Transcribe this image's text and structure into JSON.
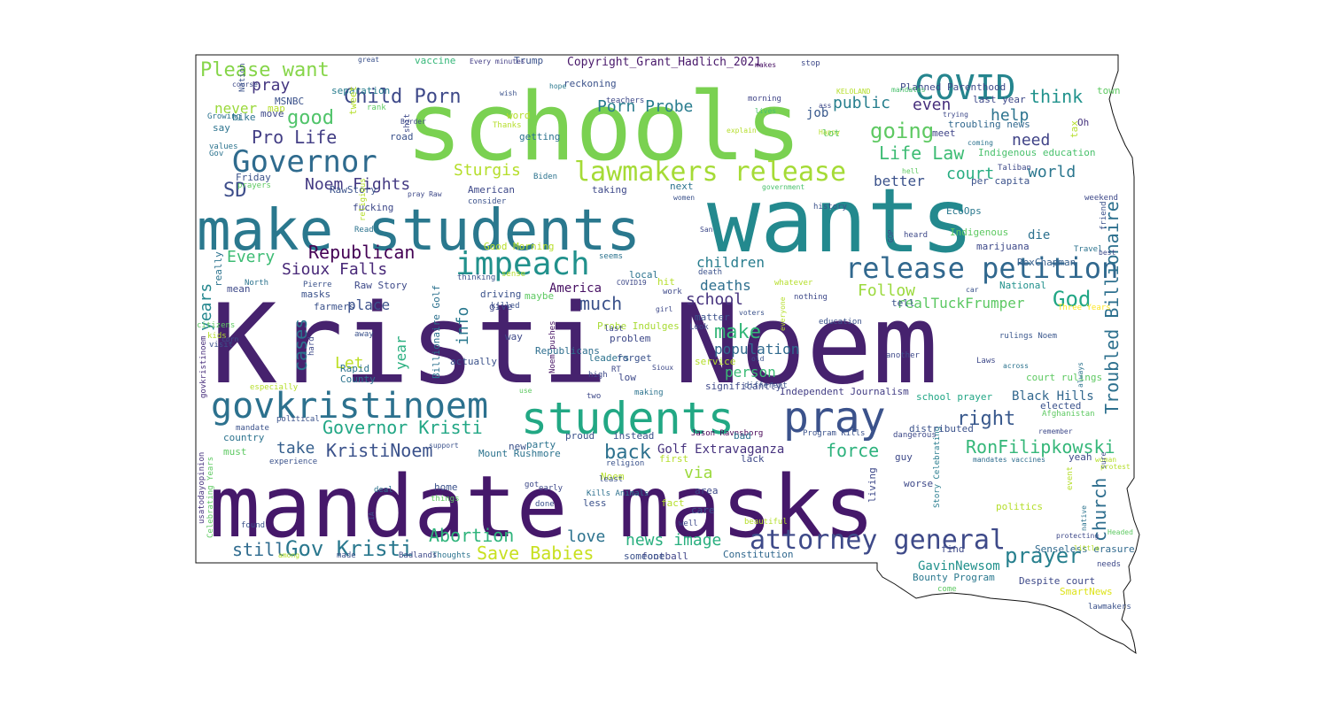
{
  "words": [
    {
      "text": "Kristi Noem",
      "color": "#46226e"
    },
    {
      "text": "mandate masks",
      "color": "#45186a"
    },
    {
      "text": "wants",
      "color": "#23898e"
    },
    {
      "text": "schools",
      "color": "#7ad151"
    },
    {
      "text": "make students",
      "color": "#2a788e"
    },
    {
      "text": "students",
      "color": "#22a884"
    },
    {
      "text": "pray",
      "color": "#3b528b"
    },
    {
      "text": "govkristinoem",
      "color": "#2c718e"
    },
    {
      "text": "Governor",
      "color": "#2f6b8e"
    },
    {
      "text": "COVID",
      "color": "#25858e"
    },
    {
      "text": "attorney general",
      "color": "#3e4a89"
    },
    {
      "text": "impeach",
      "color": "#21918c"
    },
    {
      "text": "release petition",
      "color": "#31688e"
    },
    {
      "text": "lawmakers release",
      "color": "#a5db36"
    },
    {
      "text": "Child Porn",
      "color": "#3e4989"
    },
    {
      "text": "Please want",
      "color": "#86d549"
    },
    {
      "text": "Copyright_Grant_Hadlich_2021",
      "color": "#48186a"
    },
    {
      "text": "Troubled Billionaire",
      "color": "#2d708e"
    },
    {
      "text": "RonFilipkowski",
      "color": "#35b779"
    },
    {
      "text": "Governor Kristi",
      "color": "#22a785"
    },
    {
      "text": "Gov Kristi",
      "color": "#2a788e"
    },
    {
      "text": "KristiNoem",
      "color": "#3b528b"
    },
    {
      "text": "prayer",
      "color": "#27808e"
    },
    {
      "text": "church",
      "color": "#2e6e8e"
    },
    {
      "text": "Abortion",
      "color": "#2fb47c"
    },
    {
      "text": "Save Babies",
      "color": "#c8e020"
    },
    {
      "text": "news image",
      "color": "#29af7f"
    },
    {
      "text": "Republican",
      "color": "#440154"
    },
    {
      "text": "Noem Fights",
      "color": "#443a83"
    },
    {
      "text": "Sioux Falls",
      "color": "#482878"
    },
    {
      "text": "Pro Life",
      "color": "#433e85"
    },
    {
      "text": "Life Law",
      "color": "#3dbc74"
    },
    {
      "text": "Sturgis",
      "color": "#b5de2b"
    },
    {
      "text": "Porn Probe",
      "color": "#287c8e"
    },
    {
      "text": "public",
      "color": "#277f8e"
    },
    {
      "text": "think",
      "color": "#20928c"
    },
    {
      "text": "going",
      "color": "#5ec962"
    },
    {
      "text": "help",
      "color": "#2c738e"
    },
    {
      "text": "even",
      "color": "#472f7d"
    },
    {
      "text": "need",
      "color": "#404387"
    },
    {
      "text": "court",
      "color": "#27ad81"
    },
    {
      "text": "world",
      "color": "#2a768e"
    },
    {
      "text": "God",
      "color": "#21a685"
    },
    {
      "text": "right",
      "color": "#38588c"
    },
    {
      "text": "force",
      "color": "#2db27d"
    },
    {
      "text": "back",
      "color": "#2d718e"
    },
    {
      "text": "via",
      "color": "#9bd93c"
    },
    {
      "text": "Golf Extravaganza",
      "color": "#46327e"
    },
    {
      "text": "good",
      "color": "#50c46a"
    },
    {
      "text": "SD",
      "color": "#3d4d8a"
    },
    {
      "text": "Every",
      "color": "#3dbc74"
    },
    {
      "text": "take",
      "color": "#355f8d"
    },
    {
      "text": "cases",
      "color": "#2b748e"
    },
    {
      "text": "years",
      "color": "#24878e"
    },
    {
      "text": "info",
      "color": "#2a788e"
    },
    {
      "text": "much",
      "color": "#3b528b"
    },
    {
      "text": "make",
      "color": "#35b779"
    },
    {
      "text": "school",
      "color": "#46337e"
    },
    {
      "text": "deaths",
      "color": "#2e6f8e"
    },
    {
      "text": "children",
      "color": "#287d8e"
    },
    {
      "text": "Follow",
      "color": "#9bd93c"
    },
    {
      "text": "realTuckFrumper",
      "color": "#5cc863"
    },
    {
      "text": "person",
      "color": "#3bbb75"
    },
    {
      "text": "population",
      "color": "#306a8e"
    },
    {
      "text": "place",
      "color": "#3b518b"
    },
    {
      "text": "Let",
      "color": "#bddf26"
    },
    {
      "text": "still",
      "color": "#2f6b8e"
    },
    {
      "text": "love",
      "color": "#2c728e"
    },
    {
      "text": "pray",
      "color": "#453781"
    },
    {
      "text": "job",
      "color": "#38588c"
    },
    {
      "text": "better",
      "color": "#3b528b"
    },
    {
      "text": "die",
      "color": "#2d718e"
    },
    {
      "text": "never",
      "color": "#9bd93c"
    },
    {
      "text": "America",
      "color": "#471063"
    },
    {
      "text": "year",
      "color": "#29af7f"
    },
    {
      "text": "GavinNewsom",
      "color": "#21918c"
    },
    {
      "text": "Black Hills",
      "color": "#31678e"
    },
    {
      "text": "school prayer",
      "color": "#21a685"
    },
    {
      "text": "court rulings",
      "color": "#5ec962"
    },
    {
      "text": "marijuana",
      "color": "#3e4989"
    },
    {
      "text": "RexChapman",
      "color": "#355f8d"
    },
    {
      "text": "Indigenous education",
      "color": "#4ac16d"
    },
    {
      "text": "Planned Parenthood",
      "color": "#3e4a89"
    },
    {
      "text": "Bounty Program",
      "color": "#2a788e"
    },
    {
      "text": "Despite court",
      "color": "#3e4989"
    },
    {
      "text": "Independent Journalism",
      "color": "#433e85"
    },
    {
      "text": "Billionaire Golf",
      "color": "#2c718e"
    },
    {
      "text": "Probe Indulges",
      "color": "#a8db34"
    },
    {
      "text": "Good Morning",
      "color": "#b8de29"
    },
    {
      "text": "Raw Story",
      "color": "#3e4a89"
    },
    {
      "text": "RawStory",
      "color": "#3b528b"
    },
    {
      "text": "Mount Rushmore",
      "color": "#2c738e"
    },
    {
      "text": "Senseless erasure",
      "color": "#306a8e"
    },
    {
      "text": "Constitution",
      "color": "#31688e"
    },
    {
      "text": "football",
      "color": "#404588"
    },
    {
      "text": "SmartNews",
      "color": "#dde318"
    },
    {
      "text": "Jason Ravnsborg",
      "color": "#440154"
    },
    {
      "text": "Program Kills",
      "color": "#3b528b"
    },
    {
      "text": "Kills Animals",
      "color": "#2d708e"
    },
    {
      "text": "Noem pushes",
      "color": "#471365"
    },
    {
      "text": "rulings Noem",
      "color": "#39568c"
    },
    {
      "text": "Story Celebrating",
      "color": "#287c8e"
    },
    {
      "text": "mandates vaccines",
      "color": "#2f6c8e"
    },
    {
      "text": "Celebrating Years",
      "color": "#5ec962"
    },
    {
      "text": "usatodayopinion",
      "color": "#46327e"
    },
    {
      "text": "govkristinoem",
      "color": "#472d7b"
    },
    {
      "text": "Three Years",
      "color": "#fde725"
    },
    {
      "text": "Taliban",
      "color": "#3e4989"
    },
    {
      "text": "EcoOps",
      "color": "#2a788e"
    },
    {
      "text": "Indigenous",
      "color": "#5ec962"
    },
    {
      "text": "National",
      "color": "#21918c"
    },
    {
      "text": "per capita",
      "color": "#3b528b"
    },
    {
      "text": "Republicans",
      "color": "#2e6e8e"
    },
    {
      "text": "separation",
      "color": "#287d8e"
    },
    {
      "text": "reckoning",
      "color": "#3b528b"
    },
    {
      "text": "vaccine",
      "color": "#35b779"
    },
    {
      "text": "Trump",
      "color": "#3b528b"
    },
    {
      "text": "great",
      "color": "#3b528b"
    },
    {
      "text": "Every minutes",
      "color": "#433e85"
    },
    {
      "text": "stop",
      "color": "#3e4989"
    },
    {
      "text": "makes",
      "color": "#471063"
    },
    {
      "text": "KELOLAND",
      "color": "#b5de2b"
    },
    {
      "text": "mandates",
      "color": "#4ac16d"
    },
    {
      "text": "town",
      "color": "#5ec962"
    },
    {
      "text": "tax",
      "color": "#b5de2b"
    },
    {
      "text": "trying",
      "color": "#3e4989"
    },
    {
      "text": "troubling news",
      "color": "#31688e"
    },
    {
      "text": "meet",
      "color": "#404588"
    },
    {
      "text": "last year",
      "color": "#3e4989"
    },
    {
      "text": "Oh",
      "color": "#46327e"
    },
    {
      "text": "hell",
      "color": "#5ec962"
    },
    {
      "text": "coming",
      "color": "#2c738e"
    },
    {
      "text": "ass",
      "color": "#3e4989"
    },
    {
      "text": "Happy",
      "color": "#b5de2b"
    },
    {
      "text": "lot",
      "color": "#5ec962"
    },
    {
      "text": "lives",
      "color": "#4ac16d"
    },
    {
      "text": "explain",
      "color": "#b5de2b"
    },
    {
      "text": "morning",
      "color": "#404588"
    },
    {
      "text": "teachers",
      "color": "#3e4989"
    },
    {
      "text": "wish",
      "color": "#3b528b"
    },
    {
      "text": "hope",
      "color": "#2a788e"
    },
    {
      "text": "word",
      "color": "#b5de2b"
    },
    {
      "text": "Thanks",
      "color": "#b5de2b"
    },
    {
      "text": "getting",
      "color": "#2c738e"
    },
    {
      "text": "road",
      "color": "#3b528b"
    },
    {
      "text": "shit",
      "color": "#3e4989"
    },
    {
      "text": "Border",
      "color": "#3e4989"
    },
    {
      "text": "tweet",
      "color": "#b5de2b"
    },
    {
      "text": "rank",
      "color": "#5ec962"
    },
    {
      "text": "MSNBC",
      "color": "#3b528b"
    },
    {
      "text": "map",
      "color": "#b5de2b"
    },
    {
      "text": "move",
      "color": "#3e4989"
    },
    {
      "text": "bike",
      "color": "#2c738e"
    },
    {
      "text": "course",
      "color": "#3e4989"
    },
    {
      "text": "Nation",
      "color": "#3b528b"
    },
    {
      "text": "Growing",
      "color": "#2c738e"
    },
    {
      "text": "say",
      "color": "#2c738e"
    },
    {
      "text": "values",
      "color": "#2c738e"
    },
    {
      "text": "Gov",
      "color": "#2c738e"
    },
    {
      "text": "Friday",
      "color": "#3b528b"
    },
    {
      "text": "prayers",
      "color": "#5ec962"
    },
    {
      "text": "pray Raw",
      "color": "#3e4989"
    },
    {
      "text": "American",
      "color": "#3e4989"
    },
    {
      "text": "fucking",
      "color": "#3e4989"
    },
    {
      "text": "religious",
      "color": "#b5de2b"
    },
    {
      "text": "Read",
      "color": "#2c738e"
    },
    {
      "text": "Biden",
      "color": "#2c738e"
    },
    {
      "text": "consider",
      "color": "#3b528b"
    },
    {
      "text": "taking",
      "color": "#3e4989"
    },
    {
      "text": "next",
      "color": "#2c738e"
    },
    {
      "text": "women",
      "color": "#3b528b"
    },
    {
      "text": "government",
      "color": "#4ac16d"
    },
    {
      "text": "history",
      "color": "#3b528b"
    },
    {
      "text": "friend",
      "color": "#3b528b"
    },
    {
      "text": "weekend",
      "color": "#3e4989"
    },
    {
      "text": "Travel",
      "color": "#2c738e"
    },
    {
      "text": "best",
      "color": "#3e4989"
    },
    {
      "text": "heard",
      "color": "#3e4989"
    },
    {
      "text": "GOP",
      "color": "#3e4989"
    },
    {
      "text": "San",
      "color": "#3e4989"
    },
    {
      "text": "seems",
      "color": "#2c738e"
    },
    {
      "text": "hit",
      "color": "#b5de2b"
    },
    {
      "text": "work",
      "color": "#3e4989"
    },
    {
      "text": "death",
      "color": "#3b528b"
    },
    {
      "text": "local",
      "color": "#2c738e"
    },
    {
      "text": "COVID19",
      "color": "#3e4989"
    },
    {
      "text": "really",
      "color": "#2c738e"
    },
    {
      "text": "mean",
      "color": "#3e4989"
    },
    {
      "text": "North",
      "color": "#2c738e"
    },
    {
      "text": "Pierre",
      "color": "#3b528b"
    },
    {
      "text": "masks",
      "color": "#3b528b"
    },
    {
      "text": "farmers",
      "color": "#3b528b"
    },
    {
      "text": "citizens",
      "color": "#5ec962"
    },
    {
      "text": "kids",
      "color": "#b5de2b"
    },
    {
      "text": "visit",
      "color": "#3b528b"
    },
    {
      "text": "corn",
      "color": "#3b528b"
    },
    {
      "text": "hard",
      "color": "#3e4989"
    },
    {
      "text": "especially",
      "color": "#b5de2b"
    },
    {
      "text": "County",
      "color": "#2c738e"
    },
    {
      "text": "Rapid",
      "color": "#2c738e"
    },
    {
      "text": "actually",
      "color": "#3b528b"
    },
    {
      "text": "way",
      "color": "#3e4989"
    },
    {
      "text": "driving",
      "color": "#3b528b"
    },
    {
      "text": "killed",
      "color": "#3b528b"
    },
    {
      "text": "give",
      "color": "#3e4989"
    },
    {
      "text": "maybe",
      "color": "#5ec962"
    },
    {
      "text": "sense",
      "color": "#b5de2b"
    },
    {
      "text": "thinking",
      "color": "#3b528b"
    },
    {
      "text": "problem",
      "color": "#3e4989"
    },
    {
      "text": "last",
      "color": "#3e4989"
    },
    {
      "text": "leaders",
      "color": "#2c738e"
    },
    {
      "text": "forget",
      "color": "#3b528b"
    },
    {
      "text": "high",
      "color": "#3e4989"
    },
    {
      "text": "RT",
      "color": "#3e4989"
    },
    {
      "text": "low",
      "color": "#3e4989"
    },
    {
      "text": "use",
      "color": "#5ec962"
    },
    {
      "text": "two",
      "color": "#3e4989"
    },
    {
      "text": "making",
      "color": "#2c738e"
    },
    {
      "text": "service",
      "color": "#b5de2b"
    },
    {
      "text": "significantly",
      "color": "#3e4989"
    },
    {
      "text": "different",
      "color": "#3b528b"
    },
    {
      "text": "matter",
      "color": "#3b528b"
    },
    {
      "text": "Look",
      "color": "#3e4989"
    },
    {
      "text": "old",
      "color": "#3b528b"
    },
    {
      "text": "voters",
      "color": "#3b528b"
    },
    {
      "text": "everyone",
      "color": "#b5de2b"
    },
    {
      "text": "whatever",
      "color": "#b5de2b"
    },
    {
      "text": "nothing",
      "color": "#3e4989"
    },
    {
      "text": "education",
      "color": "#3b528b"
    },
    {
      "text": "tell",
      "color": "#3b528b"
    },
    {
      "text": "girl",
      "color": "#3e4989"
    },
    {
      "text": "car",
      "color": "#3b528b"
    },
    {
      "text": "Laws",
      "color": "#3e4989"
    },
    {
      "text": "across",
      "color": "#2c738e"
    },
    {
      "text": "another",
      "color": "#3e4989"
    },
    {
      "text": "always",
      "color": "#2c738e"
    },
    {
      "text": "elected",
      "color": "#3b528b"
    },
    {
      "text": "Afghanistan",
      "color": "#5ec962"
    },
    {
      "text": "remember",
      "color": "#3e4989"
    },
    {
      "text": "dangerous",
      "color": "#3e4989"
    },
    {
      "text": "distributed",
      "color": "#3b528b"
    },
    {
      "text": "yeah",
      "color": "#3e4989"
    },
    {
      "text": "woman",
      "color": "#b5de2b"
    },
    {
      "text": "sure",
      "color": "#3e4989"
    },
    {
      "text": "protest",
      "color": "#b5de2b"
    },
    {
      "text": "guy",
      "color": "#3e4989"
    },
    {
      "text": "worse",
      "color": "#3e4989"
    },
    {
      "text": "living",
      "color": "#3e4989"
    },
    {
      "text": "event",
      "color": "#b5de2b"
    },
    {
      "text": "politics",
      "color": "#b5de2b"
    },
    {
      "text": "native",
      "color": "#2c738e"
    },
    {
      "text": "protecting",
      "color": "#3e4989"
    },
    {
      "text": "little",
      "color": "#b5de2b"
    },
    {
      "text": "Headed",
      "color": "#5ec962"
    },
    {
      "text": "needs",
      "color": "#3e4989"
    },
    {
      "text": "find",
      "color": "#3e4989"
    },
    {
      "text": "come",
      "color": "#5ec962"
    },
    {
      "text": "lawmakers",
      "color": "#3b528b"
    },
    {
      "text": "bad",
      "color": "#2c738e"
    },
    {
      "text": "lack",
      "color": "#3e4989"
    },
    {
      "text": "proud",
      "color": "#3b528b"
    },
    {
      "text": "instead",
      "color": "#3b528b"
    },
    {
      "text": "party",
      "color": "#2c738e"
    },
    {
      "text": "new",
      "color": "#3b528b"
    },
    {
      "text": "first",
      "color": "#b5de2b"
    },
    {
      "text": "religion",
      "color": "#3b528b"
    },
    {
      "text": "Noem",
      "color": "#b5de2b"
    },
    {
      "text": "least",
      "color": "#3b528b"
    },
    {
      "text": "area",
      "color": "#3e4989"
    },
    {
      "text": "fact",
      "color": "#b5de2b"
    },
    {
      "text": "care",
      "color": "#3b528b"
    },
    {
      "text": "well",
      "color": "#3e4989"
    },
    {
      "text": "beautiful",
      "color": "#b5de2b"
    },
    {
      "text": "less",
      "color": "#3b528b"
    },
    {
      "text": "early",
      "color": "#3e4989"
    },
    {
      "text": "home",
      "color": "#3b528b"
    },
    {
      "text": "done",
      "color": "#3b528b"
    },
    {
      "text": "got",
      "color": "#3e4989"
    },
    {
      "text": "things",
      "color": "#5ec962"
    },
    {
      "text": "Thoughts",
      "color": "#2c738e"
    },
    {
      "text": "Badlands",
      "color": "#3e4989"
    },
    {
      "text": "someone",
      "color": "#3b528b"
    },
    {
      "text": "deal",
      "color": "#2c738e"
    },
    {
      "text": "IA",
      "color": "#3e4989"
    },
    {
      "text": "found",
      "color": "#3b528b"
    },
    {
      "text": "made",
      "color": "#3b528b"
    },
    {
      "text": "among",
      "color": "#b5de2b"
    },
    {
      "text": "must",
      "color": "#5ec962"
    },
    {
      "text": "experience",
      "color": "#3b528b"
    },
    {
      "text": "country",
      "color": "#2c738e"
    },
    {
      "text": "mandate",
      "color": "#3b528b"
    },
    {
      "text": "political",
      "color": "#3b528b"
    },
    {
      "text": "support",
      "color": "#3b528b"
    },
    {
      "text": "away",
      "color": "#3b528b"
    },
    {
      "text": "Sioux",
      "color": "#3e4989"
    },
    {
      "text": "center",
      "color": "#3b528b"
    },
    {
      "text": "thing",
      "color": "#5ec962"
    }
  ]
}
